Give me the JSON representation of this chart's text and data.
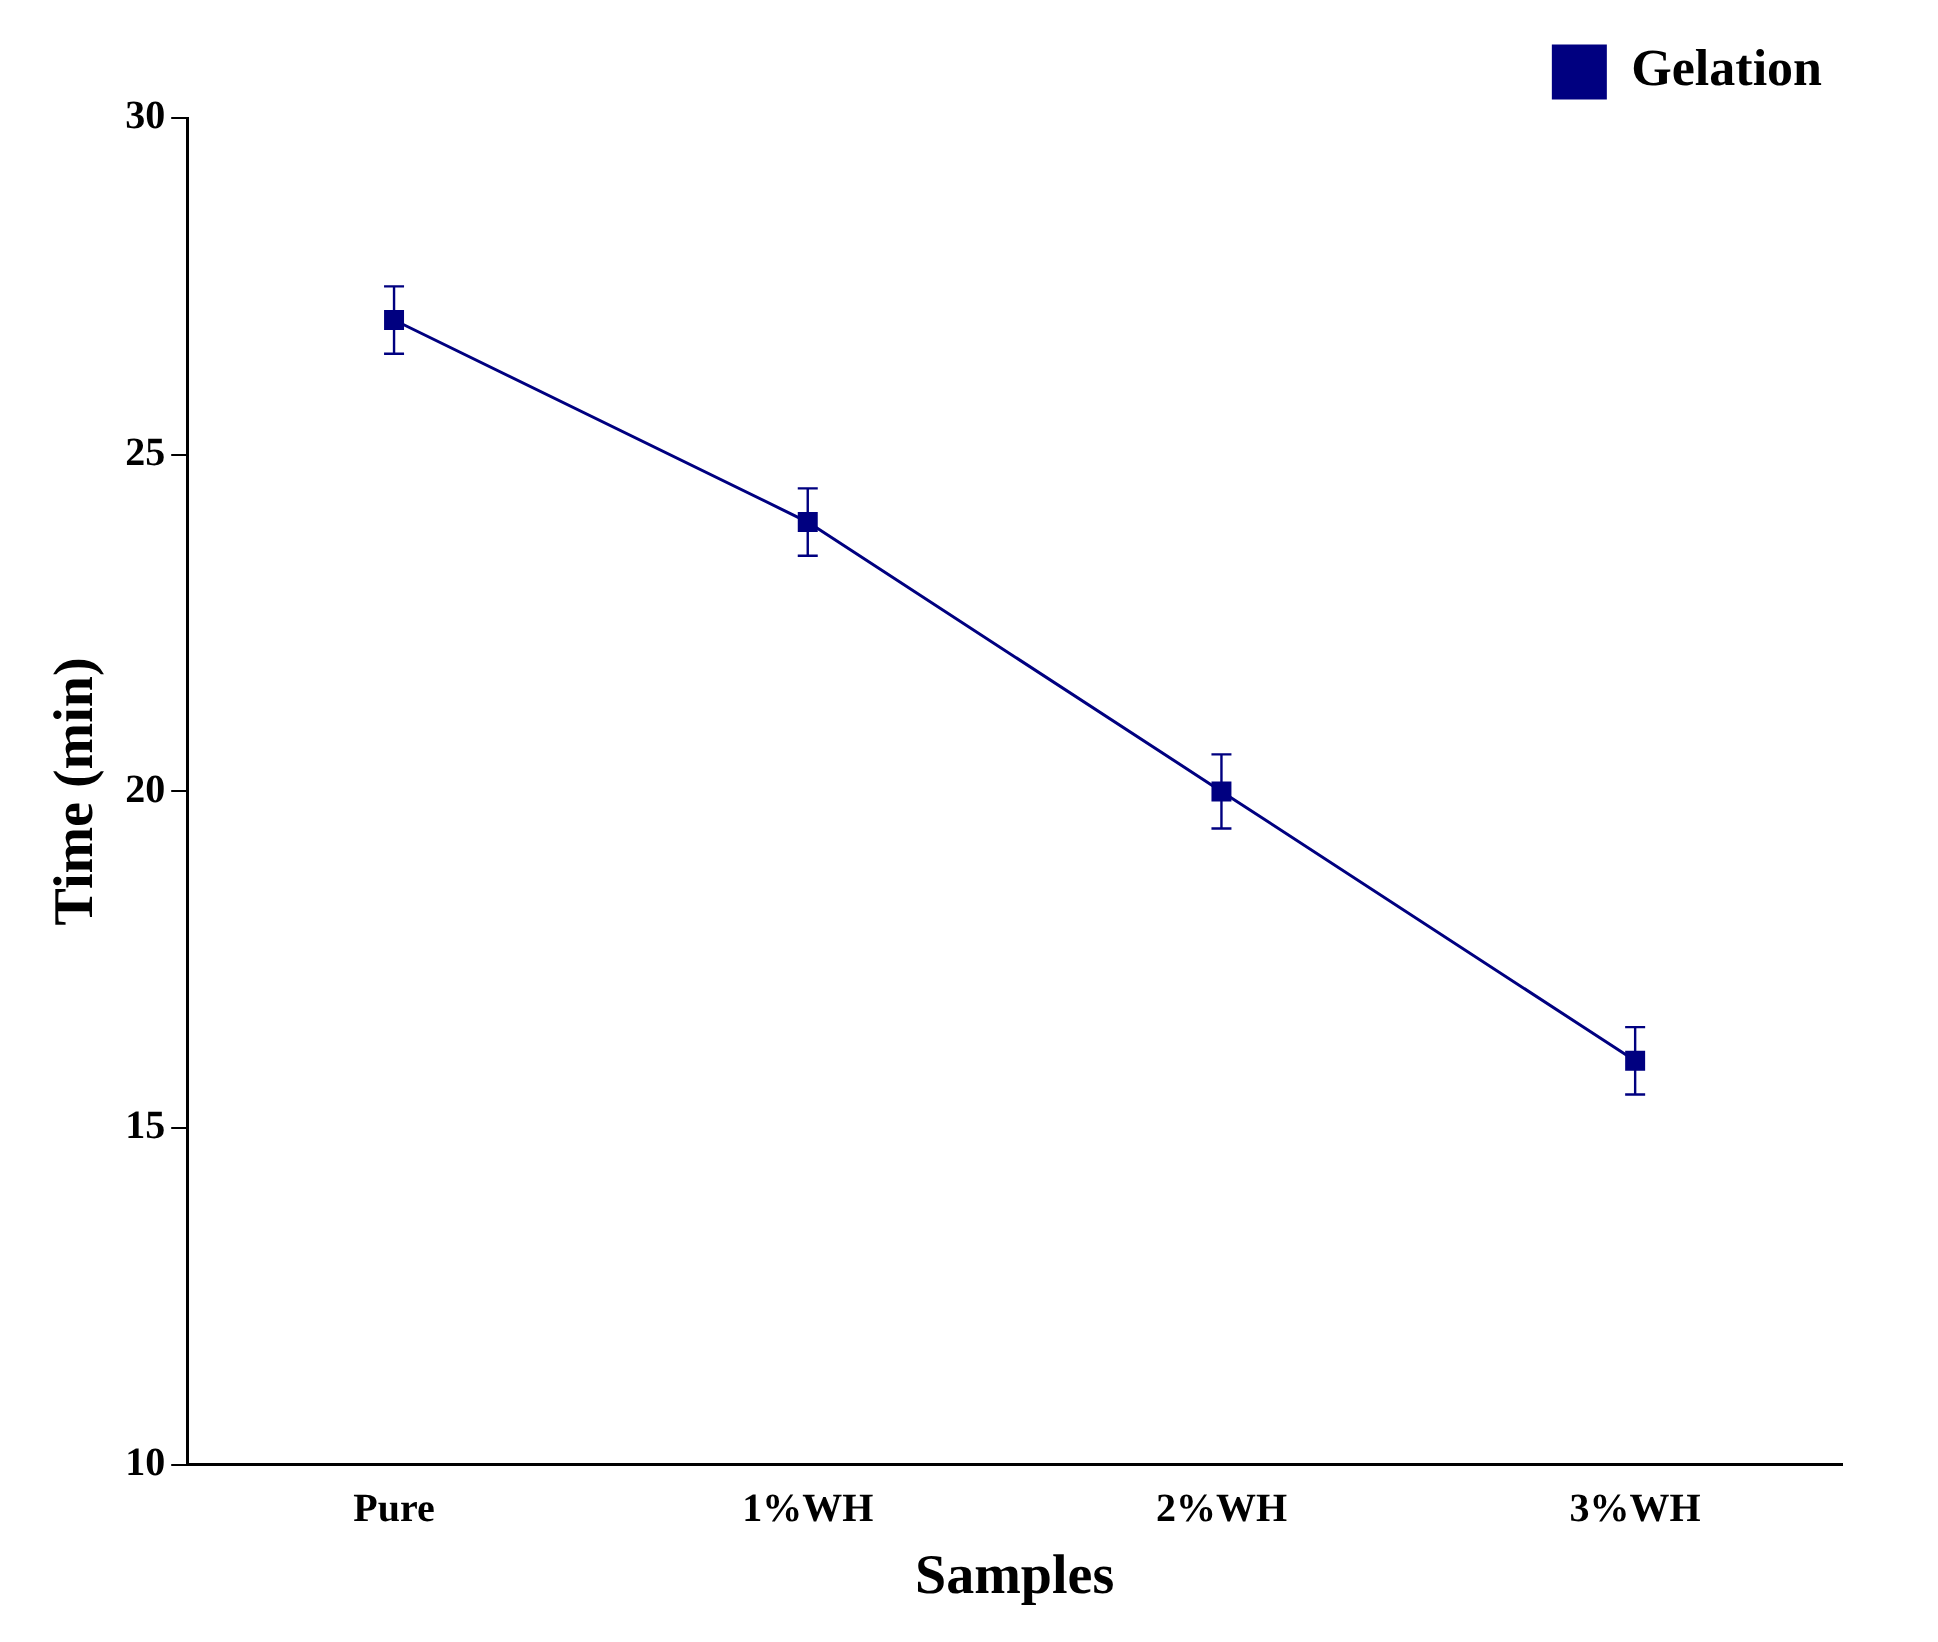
{
  "chart_data": {
    "type": "line",
    "xlabel": "Samples",
    "ylabel": "Time (min)",
    "categories": [
      "Pure",
      "1%WH",
      "2%WH",
      "3%WH"
    ],
    "series": [
      {
        "name": "Gelation",
        "color": "#000080",
        "values": [
          27,
          24,
          20,
          16
        ],
        "errors": [
          0.5,
          0.5,
          0.55,
          0.5
        ]
      }
    ],
    "ylim": [
      10,
      30
    ],
    "yticks": [
      10,
      15,
      20,
      25,
      30
    ],
    "grid": false,
    "legend": "top right",
    "marker": "square",
    "line_style": "solid"
  }
}
